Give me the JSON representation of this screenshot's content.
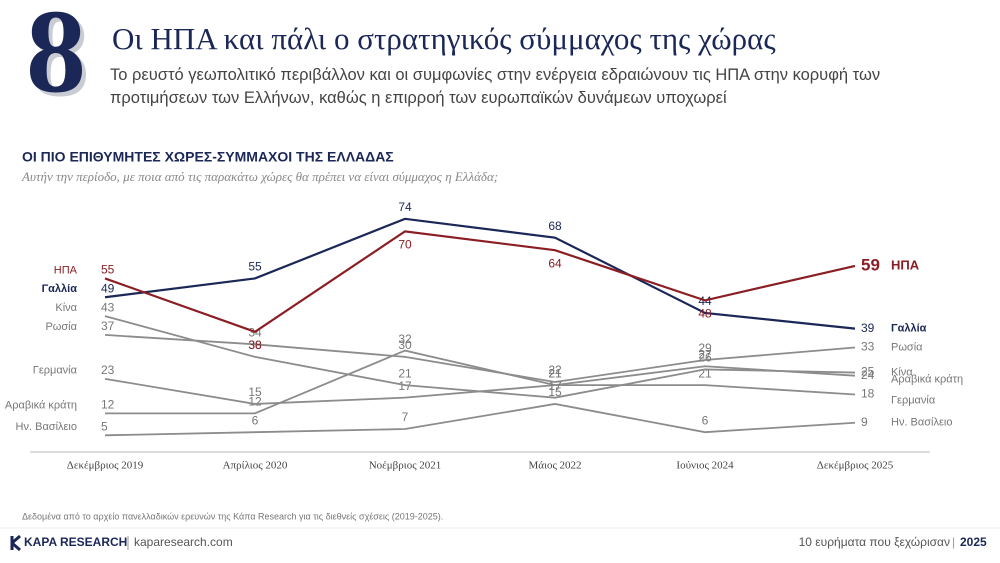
{
  "header": {
    "number": "8",
    "title": "Οι ΗΠΑ και πάλι ο στρατηγικός σύμμαχος της χώρας",
    "subtitle": "Το ρευστό γεωπολιτικό περιβάλλον και οι συμφωνίες στην ενέργεια εδραιώνουν τις ΗΠΑ στην κορυφή των προτιμήσεων των Ελλήνων, καθώς η επιρροή των ευρωπαϊκών δυνάμεων υποχωρεί"
  },
  "chart_data": {
    "type": "line",
    "title": "ΟΙ ΠΙΟ ΕΠΙΘΥΜΗΤΕΣ ΧΩΡΕΣ-ΣΥΜΜΑΧΟΙ ΤΗΣ ΕΛΛΑΔΑΣ",
    "subtitle": "Αυτήν την περίοδο, με ποια από τις παρακάτω χώρες θα πρέπει να είναι σύμμαχος η Ελλάδα;",
    "categories": [
      "Δεκέμβριος 2019",
      "Απρίλιος 2020",
      "Νοέμβριος 2021",
      "Μάιος 2022",
      "Ιούνιος 2024",
      "Δεκέμβριος 2025"
    ],
    "ylim": [
      0,
      80
    ],
    "series": [
      {
        "name": "ΗΠΑ",
        "color": "#8b1e24",
        "values": [
          55,
          38,
          70,
          64,
          48,
          59
        ]
      },
      {
        "name": "Γαλλία",
        "color": "#1b2757",
        "values": [
          49,
          55,
          74,
          68,
          44,
          39
        ]
      },
      {
        "name": "Κίνα",
        "color": "#8c8c8c",
        "values": [
          43,
          30,
          21,
          17,
          26,
          25
        ]
      },
      {
        "name": "Ρωσία",
        "color": "#8c8c8c",
        "values": [
          37,
          34,
          30,
          22,
          29,
          33
        ]
      },
      {
        "name": "Γερμανία",
        "color": "#8c8c8c",
        "values": [
          23,
          15,
          17,
          21,
          21,
          18
        ]
      },
      {
        "name": "Αραβικά κράτη",
        "color": "#8c8c8c",
        "values": [
          12,
          12,
          32,
          21,
          27,
          24
        ]
      },
      {
        "name": "Ην. Βασίλειο",
        "color": "#8c8c8c",
        "values": [
          5,
          6,
          7,
          15,
          6,
          9
        ]
      }
    ],
    "note": "Δεδομένα από το αρχείο πανελλαδικών ερευνών της Κάπα Research  για τις διεθνείς σχέσεις (2019-2025)."
  },
  "footer": {
    "brand": "KAPA RESEARCH",
    "site": "kaparesearch.com",
    "right": "10 ευρήματα που ξεχώρισαν",
    "year": "2025"
  }
}
